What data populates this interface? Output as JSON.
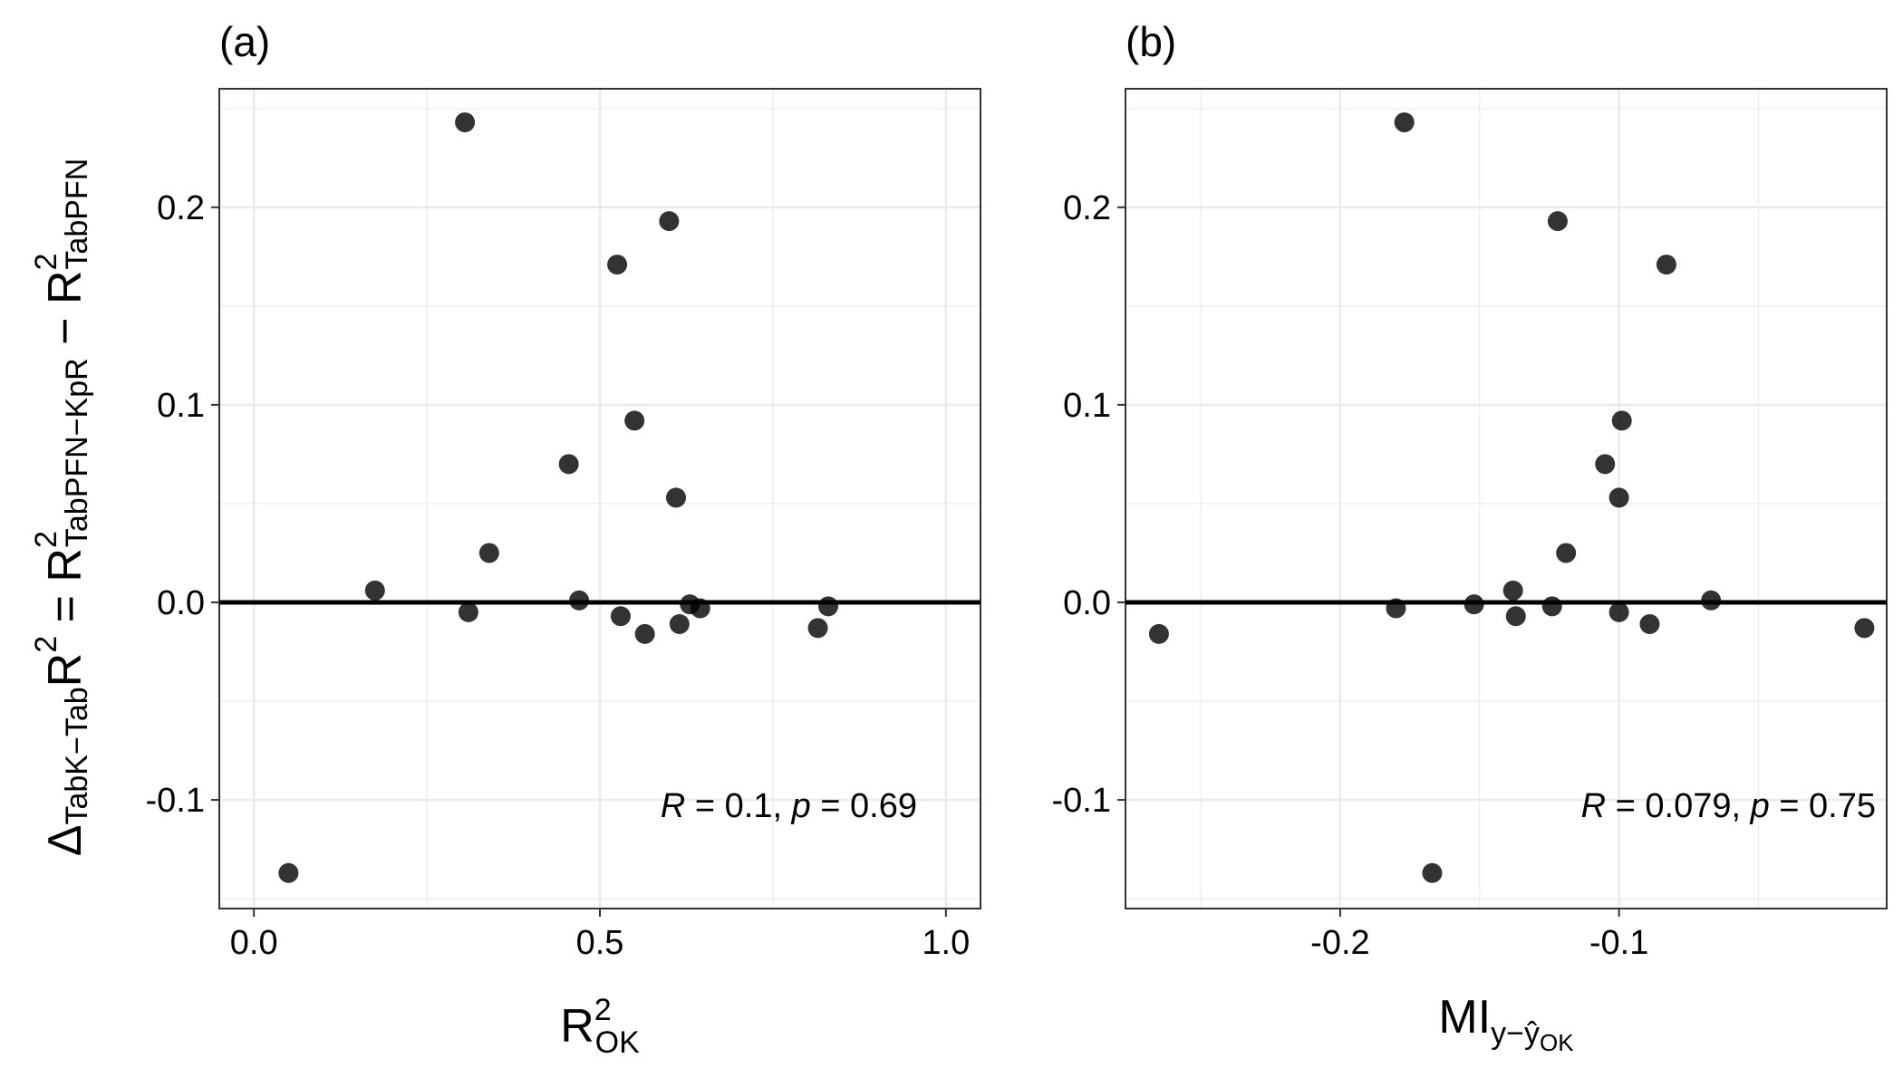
{
  "chart_data": [
    {
      "type": "scatter",
      "panel": "(a)",
      "annotation": {
        "r_label": "R",
        "r_value": " = 0.1, ",
        "p_label": "p",
        "p_value": " = 0.69"
      },
      "xlabel": {
        "base": "R",
        "sup": "2",
        "sub": "OK"
      },
      "ylabel": {
        "delta": "Δ",
        "delta_sub": "TabK−Tab",
        "r1": "R",
        "r1_sup": "2",
        "eq": " = ",
        "r2": "R",
        "r2_sup": "2",
        "r2_sub": "TabPFN−KpR",
        "minus": " − ",
        "r3": "R",
        "r3_sup": "2",
        "r3_sub": "TabPFN"
      },
      "xlim": [
        -0.05,
        1.05
      ],
      "ylim": [
        -0.155,
        0.26
      ],
      "x_ticks": [
        0.0,
        0.5,
        1.0
      ],
      "x_tick_labels": [
        "0.0",
        "0.5",
        "1.0"
      ],
      "y_ticks": [
        -0.1,
        0.0,
        0.1,
        0.2
      ],
      "y_tick_labels": [
        "-0.1",
        "0.0",
        "0.1",
        "0.2"
      ],
      "hline": 0.0,
      "points": [
        {
          "x": 0.05,
          "y": -0.137
        },
        {
          "x": 0.175,
          "y": 0.006
        },
        {
          "x": 0.305,
          "y": 0.243
        },
        {
          "x": 0.31,
          "y": -0.005
        },
        {
          "x": 0.34,
          "y": 0.025
        },
        {
          "x": 0.455,
          "y": 0.07
        },
        {
          "x": 0.47,
          "y": 0.001
        },
        {
          "x": 0.525,
          "y": 0.171
        },
        {
          "x": 0.53,
          "y": -0.007
        },
        {
          "x": 0.55,
          "y": 0.092
        },
        {
          "x": 0.565,
          "y": -0.016
        },
        {
          "x": 0.6,
          "y": 0.193
        },
        {
          "x": 0.61,
          "y": 0.053
        },
        {
          "x": 0.615,
          "y": -0.011
        },
        {
          "x": 0.63,
          "y": -0.001
        },
        {
          "x": 0.645,
          "y": -0.003
        },
        {
          "x": 0.815,
          "y": -0.013
        },
        {
          "x": 0.83,
          "y": -0.002
        }
      ]
    },
    {
      "type": "scatter",
      "panel": "(b)",
      "annotation": {
        "r_label": "R",
        "r_value": " = 0.079, ",
        "p_label": "p",
        "p_value": " = 0.75"
      },
      "xlabel": {
        "base": "MI",
        "sub": "y−ŷ",
        "sub2": "OK"
      },
      "xlim": [
        -0.277,
        -0.004
      ],
      "ylim": [
        -0.155,
        0.26
      ],
      "x_ticks": [
        -0.2,
        -0.1
      ],
      "x_tick_labels": [
        "-0.2",
        "-0.1"
      ],
      "y_ticks": [
        -0.1,
        0.0,
        0.1,
        0.2
      ],
      "y_tick_labels": [
        "-0.1",
        "0.0",
        "0.1",
        "0.2"
      ],
      "hline": 0.0,
      "points": [
        {
          "x": -0.265,
          "y": -0.016
        },
        {
          "x": -0.18,
          "y": -0.003
        },
        {
          "x": -0.177,
          "y": 0.243
        },
        {
          "x": -0.167,
          "y": -0.137
        },
        {
          "x": -0.152,
          "y": -0.001
        },
        {
          "x": -0.138,
          "y": 0.006
        },
        {
          "x": -0.137,
          "y": -0.007
        },
        {
          "x": -0.124,
          "y": -0.002
        },
        {
          "x": -0.122,
          "y": 0.193
        },
        {
          "x": -0.119,
          "y": 0.025
        },
        {
          "x": -0.105,
          "y": 0.07
        },
        {
          "x": -0.1,
          "y": 0.053
        },
        {
          "x": -0.1,
          "y": -0.005
        },
        {
          "x": -0.099,
          "y": 0.092
        },
        {
          "x": -0.089,
          "y": -0.011
        },
        {
          "x": -0.083,
          "y": 0.171
        },
        {
          "x": -0.067,
          "y": 0.001
        },
        {
          "x": -0.012,
          "y": -0.013
        }
      ]
    }
  ]
}
